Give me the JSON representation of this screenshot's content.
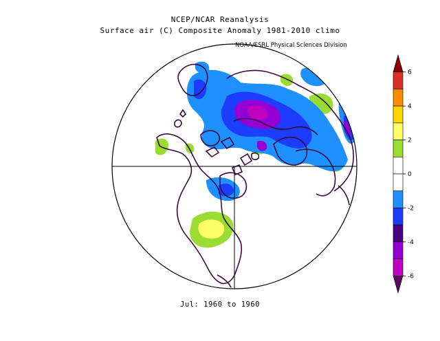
{
  "header": {
    "title_line1": "NCEP/NCAR Reanalysis",
    "title_line2": "Surface air (C) Composite Anomaly 1981-2010 climo",
    "credit": "NOAA/ESRL Physical Sciences Division"
  },
  "footer": {
    "period": "Jul: 1960 to 1960"
  },
  "colorbar": {
    "tick_labels": [
      "6",
      "4",
      "2",
      "0",
      "-2",
      "-4",
      "-6"
    ],
    "colors": [
      "#8b0000",
      "#d73027",
      "#ff8c00",
      "#ffd700",
      "#ffff66",
      "#99dd33",
      "#ffffff",
      "#ffffff",
      "#1e90ff",
      "#1c3cff",
      "#4b0082",
      "#9400d3",
      "#c000c0",
      "#5a0a5a"
    ]
  },
  "map": {
    "projection": "north polar stereographic",
    "land_outline_color": "#3a0a3a",
    "anomaly_colors": {
      "warm_light": "#99dd33",
      "warm": "#ffff66",
      "cool": "#1e90ff",
      "cooler": "#1c3cff",
      "coldest": "#9400d3"
    }
  }
}
